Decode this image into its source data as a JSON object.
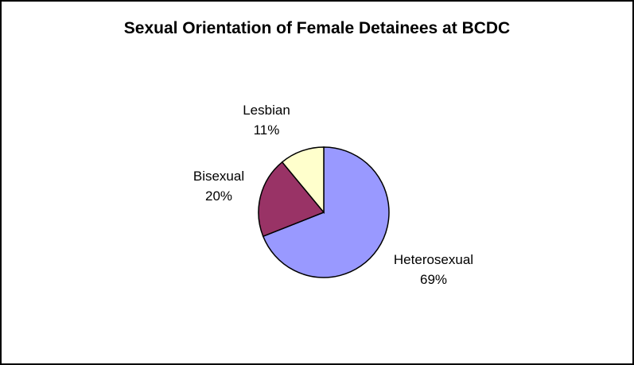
{
  "chart_data": {
    "type": "pie",
    "title": "Sexual Orientation of Female Detainees at BCDC",
    "slices": [
      {
        "label": "Heterosexual",
        "value": 69,
        "value_label": "69%",
        "color": "#9999ff"
      },
      {
        "label": "Bisexual",
        "value": 20,
        "value_label": "20%",
        "color": "#993366"
      },
      {
        "label": "Lesbian",
        "value": 11,
        "value_label": "11%",
        "color": "#ffffcc"
      }
    ],
    "start_angle_deg": 0,
    "direction": "clockwise",
    "legend": "none"
  }
}
